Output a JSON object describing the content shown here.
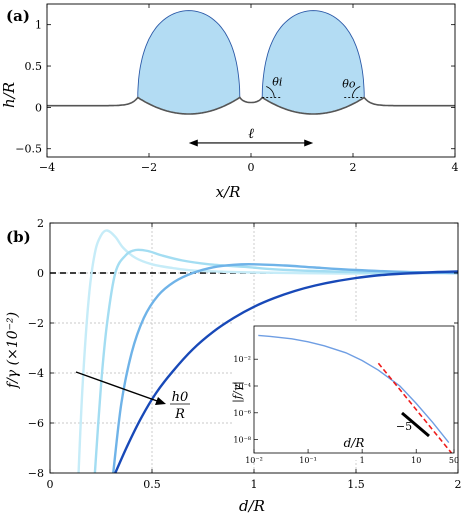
{
  "chart_data": [
    {
      "panel_label": "(a)",
      "type": "area",
      "xlabel": "x/R",
      "ylabel": "h/R",
      "xlim": [
        -4,
        4
      ],
      "ylim": [
        -0.6,
        1.25
      ],
      "xticks": [
        -4,
        -2,
        0,
        2,
        4
      ],
      "xtick_labels": [
        "−4",
        "−2",
        "0",
        "2",
        "4"
      ],
      "yticks": [
        -0.5,
        0,
        0.5,
        1
      ],
      "ytick_labels": [
        "−0.5",
        "0",
        "0.5",
        "1"
      ],
      "grid": false,
      "colors": {
        "droplet_fill": "#b3dcf3",
        "droplet_edge": "#2c5aa8",
        "membrane": "#555555"
      },
      "droplets": [
        {
          "center": -1.22,
          "half_width": 1.0,
          "apex": 1.17,
          "base": 0.12,
          "bottom": -0.08
        },
        {
          "center": 1.22,
          "half_width": 1.0,
          "apex": 1.17,
          "base": 0.12,
          "bottom": -0.08
        }
      ],
      "annotations": {
        "separation_label": "ℓ",
        "separation_from": -1.22,
        "separation_to": 1.22,
        "inner_angle_label": "θi",
        "outer_angle_label": "θo"
      }
    },
    {
      "panel_label": "(b)",
      "type": "line",
      "xlabel": "d/R",
      "ylabel": "f/γ (×10⁻²)",
      "xlim": [
        0,
        2
      ],
      "ylim": [
        -8,
        2
      ],
      "xticks": [
        0,
        0.5,
        1,
        1.5,
        2
      ],
      "xtick_labels": [
        "0",
        "0.5",
        "1",
        "1.5",
        "2"
      ],
      "yticks": [
        -8,
        -6,
        -4,
        -2,
        0,
        2
      ],
      "ytick_labels": [
        "−8",
        "−6",
        "−4",
        "−2",
        "0",
        "2"
      ],
      "grid": true,
      "zero_line": true,
      "arrow_label_top": "h0",
      "arrow_label_bottom": "R",
      "series": [
        {
          "color": "#c6ecf8",
          "x": [
            0.14,
            0.16,
            0.19,
            0.22,
            0.25,
            0.28,
            0.32,
            0.36,
            0.42,
            0.5,
            0.6,
            0.7,
            0.85,
            1.0,
            1.2,
            1.5,
            2.0
          ],
          "y": [
            -8,
            -4.5,
            -1.0,
            0.8,
            1.5,
            1.7,
            1.45,
            1.0,
            0.6,
            0.35,
            0.2,
            0.1,
            0.05,
            0.02,
            0.0,
            -0.02,
            0.0
          ]
        },
        {
          "color": "#a3ddf2",
          "x": [
            0.22,
            0.25,
            0.28,
            0.32,
            0.37,
            0.42,
            0.48,
            0.55,
            0.65,
            0.78,
            0.95,
            1.1,
            1.3,
            1.6,
            2.0
          ],
          "y": [
            -8,
            -4.5,
            -2.0,
            0.0,
            0.7,
            0.92,
            0.88,
            0.7,
            0.5,
            0.35,
            0.25,
            0.15,
            0.08,
            0.02,
            0.0
          ]
        },
        {
          "color": "#6fb3e8",
          "x": [
            0.31,
            0.35,
            0.4,
            0.46,
            0.53,
            0.61,
            0.7,
            0.8,
            0.9,
            1.0,
            1.15,
            1.3,
            1.5,
            1.75,
            2.0
          ],
          "y": [
            -8,
            -5.2,
            -3.2,
            -1.8,
            -0.9,
            -0.35,
            0.0,
            0.23,
            0.33,
            0.35,
            0.3,
            0.22,
            0.12,
            0.04,
            0.0
          ]
        },
        {
          "color": "#1849b8",
          "x": [
            0.32,
            0.38,
            0.45,
            0.52,
            0.6,
            0.7,
            0.8,
            0.9,
            1.0,
            1.1,
            1.2,
            1.3,
            1.4,
            1.5,
            1.6,
            1.7,
            1.8,
            1.9,
            2.0
          ],
          "y": [
            -8,
            -6.9,
            -5.75,
            -4.8,
            -3.95,
            -3.05,
            -2.35,
            -1.8,
            -1.35,
            -1.0,
            -0.72,
            -0.5,
            -0.33,
            -0.2,
            -0.1,
            -0.04,
            0.0,
            0.04,
            0.06
          ]
        }
      ]
    },
    {
      "panel_label": "inset",
      "type": "line",
      "log_x": true,
      "log_y": true,
      "xlabel": "d/R",
      "ylabel": "|f/γ|",
      "xlim": [
        0.01,
        50
      ],
      "ylim": [
        1e-09,
        3
      ],
      "xticks": [
        0.01,
        0.1,
        1,
        10,
        50
      ],
      "xtick_labels": [
        "10⁻²",
        "10⁻¹",
        "1",
        "10",
        "50"
      ],
      "yticks": [
        0.01,
        0.0001,
        1e-06,
        1e-08
      ],
      "ytick_labels": [
        "10⁻²",
        "10⁻⁴",
        "10⁻⁶",
        "10⁻⁸"
      ],
      "slope_label": "−5",
      "series": [
        {
          "color": "#6f9ee3",
          "x": [
            0.012,
            0.02,
            0.05,
            0.1,
            0.2,
            0.5,
            1,
            2,
            5,
            10,
            20,
            40
          ],
          "y": [
            0.6,
            0.5,
            0.33,
            0.2,
            0.1,
            0.03,
            0.008,
            0.0015,
            0.0001,
            5e-06,
            2e-07,
            6e-09
          ]
        },
        {
          "color": "#ee1c1c",
          "dashed": true,
          "x": [
            2,
            45
          ],
          "y": [
            0.005,
            1e-09
          ]
        }
      ]
    }
  ]
}
